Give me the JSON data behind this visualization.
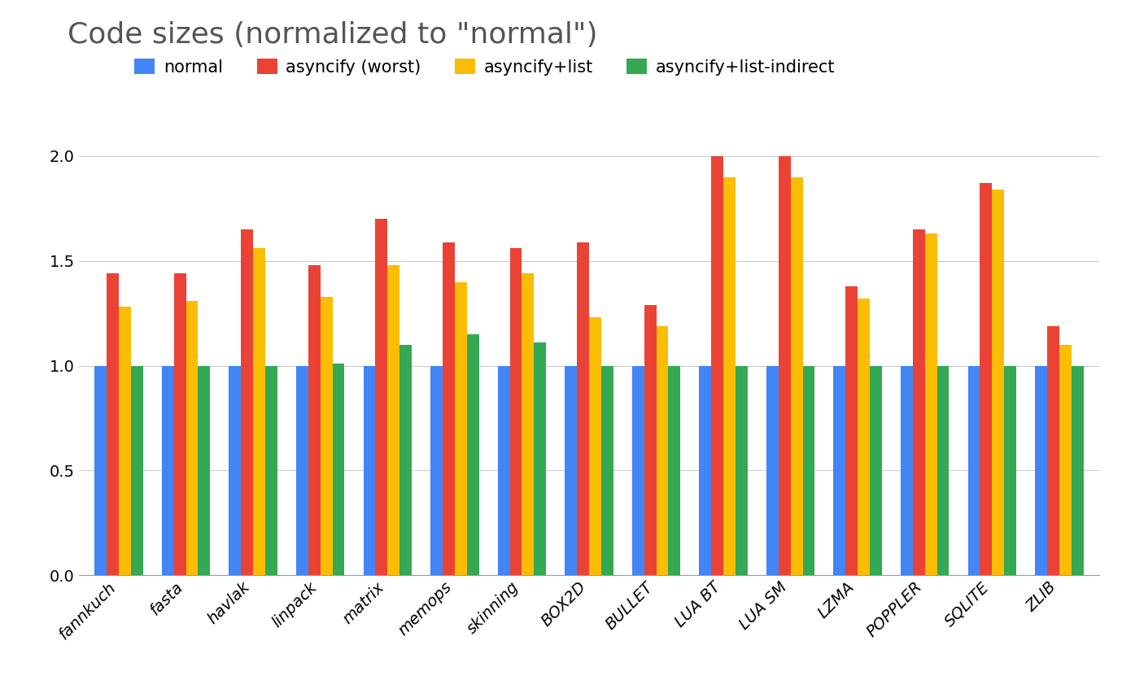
{
  "title": "Code sizes (normalized to \"normal\")",
  "categories": [
    "fannkuch",
    "fasta",
    "havlak",
    "linpack",
    "matrix",
    "memops",
    "skinning",
    "BOX2D",
    "BULLET",
    "LUA BT",
    "LUA SM",
    "LZMA",
    "POPPLER",
    "SQLITE",
    "ZLIB"
  ],
  "series": {
    "normal": [
      1.0,
      1.0,
      1.0,
      1.0,
      1.0,
      1.0,
      1.0,
      1.0,
      1.0,
      1.0,
      1.0,
      1.0,
      1.0,
      1.0,
      1.0
    ],
    "asyncify (worst)": [
      1.44,
      1.44,
      1.65,
      1.48,
      1.7,
      1.59,
      1.56,
      1.59,
      1.29,
      2.0,
      2.0,
      1.38,
      1.65,
      1.87,
      1.19
    ],
    "asyncify+list": [
      1.28,
      1.31,
      1.56,
      1.33,
      1.48,
      1.4,
      1.44,
      1.23,
      1.19,
      1.9,
      1.9,
      1.32,
      1.63,
      1.84,
      1.1
    ],
    "asyncify+list-indirect": [
      1.0,
      1.0,
      1.0,
      1.01,
      1.1,
      1.15,
      1.11,
      1.0,
      1.0,
      1.0,
      1.0,
      1.0,
      1.0,
      1.0,
      1.0
    ]
  },
  "colors": {
    "normal": "#4285F4",
    "asyncify (worst)": "#EA4335",
    "asyncify+list": "#FBBC04",
    "asyncify+list-indirect": "#34A853"
  },
  "ylim": [
    0,
    2.15
  ],
  "yticks": [
    0,
    0.5,
    1.0,
    1.5,
    2.0
  ],
  "background_color": "#ffffff",
  "title_fontsize": 26,
  "legend_fontsize": 15,
  "tick_fontsize": 14,
  "bar_width": 0.18
}
